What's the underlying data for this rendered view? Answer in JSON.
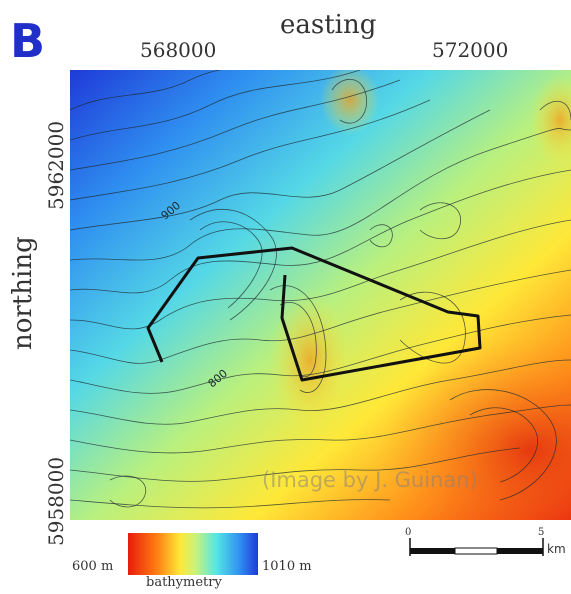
{
  "panel": {
    "letter": "B"
  },
  "axes": {
    "x_title": "easting",
    "y_title": "northing",
    "x_ticks": [
      "568000",
      "572000"
    ],
    "y_ticks": [
      "5962000",
      "5958000"
    ]
  },
  "contour_labels": [
    "900",
    "800"
  ],
  "watermark": "(Image by J. Guinan)",
  "legend": {
    "min_label": "600 m",
    "max_label": "1010 m",
    "title": "bathymetry",
    "colors": [
      "#e81c0c",
      "#ff7d12",
      "#ffe838",
      "#c9f27a",
      "#55e6e6",
      "#2f8ff0",
      "#1f3ad8"
    ]
  },
  "scale_bar": {
    "start_label": "0",
    "end_label": "5",
    "unit": "km"
  }
}
